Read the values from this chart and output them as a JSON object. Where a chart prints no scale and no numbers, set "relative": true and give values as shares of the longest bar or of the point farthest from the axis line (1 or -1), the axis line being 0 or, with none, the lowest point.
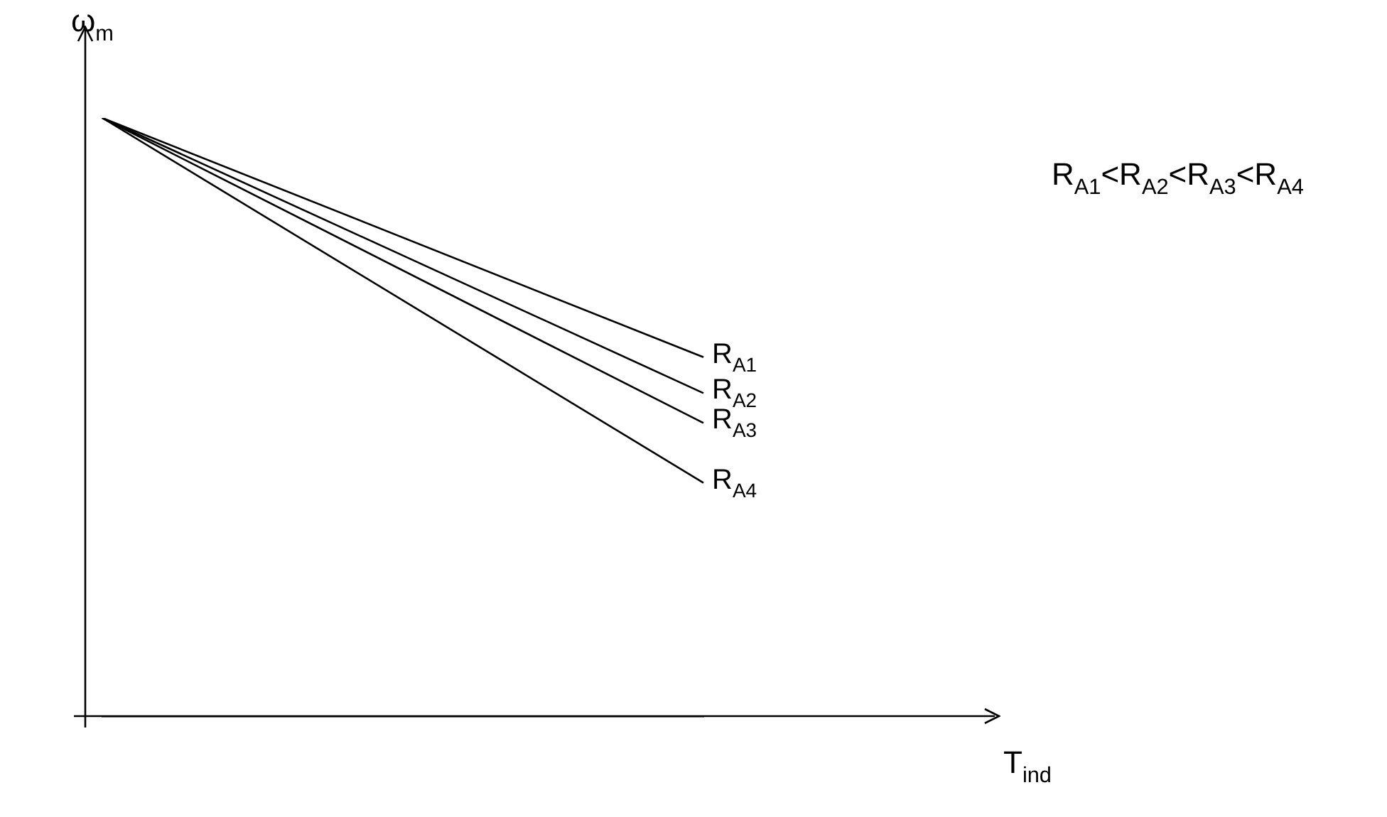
{
  "chart_data": {
    "type": "line",
    "relative": true,
    "xlabel": "T$_{ind}$",
    "ylabel": "ω$_{m}$",
    "categories": [
      null,
      null
    ],
    "marker": "none",
    "legend": false,
    "series": [
      {
        "name": "R$_{A1}$",
        "color": "#000000",
        "values": [
          1,
          0.6
        ]
      },
      {
        "name": "R$_{A2}$",
        "color": "#000000",
        "values": [
          1,
          0.54
        ]
      },
      {
        "name": "R$_{A3}$",
        "color": "#000000",
        "values": [
          1,
          0.49
        ]
      },
      {
        "name": "R$_{A4}$",
        "color": "#000000",
        "values": [
          1,
          0.39
        ]
      }
    ],
    "annotations": [
      "R$_{A1}$<R$_{A2}$<R$_{A3}$<R$_{A4}$"
    ]
  }
}
